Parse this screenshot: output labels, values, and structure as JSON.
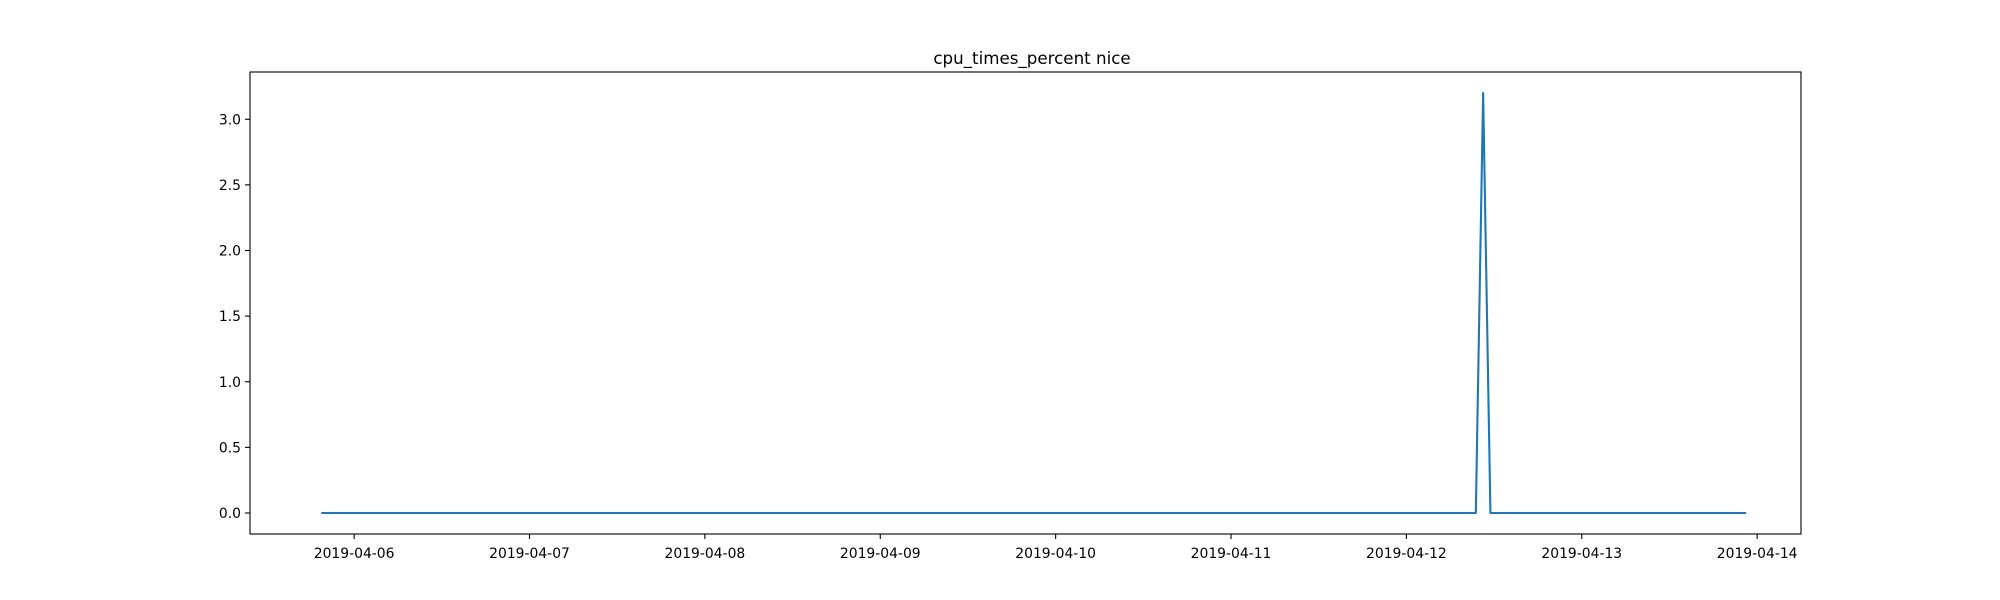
{
  "chart_data": {
    "type": "line",
    "title": "cpu_times_percent nice",
    "xlabel": "",
    "ylabel": "",
    "x_axis_kind": "date",
    "xlim": [
      "2019-04-05T09:45",
      "2019-04-14T06:00"
    ],
    "ylim": [
      -0.16,
      3.36
    ],
    "x_ticks": [
      "2019-04-06",
      "2019-04-07",
      "2019-04-08",
      "2019-04-09",
      "2019-04-10",
      "2019-04-11",
      "2019-04-12",
      "2019-04-13",
      "2019-04-14"
    ],
    "y_ticks": [
      0.0,
      0.5,
      1.0,
      1.5,
      2.0,
      2.5,
      3.0
    ],
    "y_tick_labels": [
      "0.0",
      "0.5",
      "1.0",
      "1.5",
      "2.0",
      "2.5",
      "3.0"
    ],
    "grid": false,
    "legend": "none",
    "series": [
      {
        "color": "#1f77b4",
        "x": [
          "2019-04-05T19:30",
          "2019-04-12T09:30",
          "2019-04-12T10:30",
          "2019-04-12T11:30",
          "2019-04-13T22:30"
        ],
        "y": [
          0.0,
          0.0,
          3.2,
          0.0,
          0.0
        ]
      }
    ]
  }
}
